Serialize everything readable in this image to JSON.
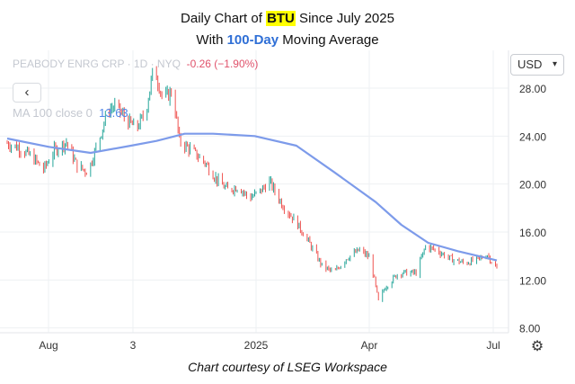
{
  "title": {
    "line1_prefix": "Daily Chart of ",
    "ticker": "BTU",
    "line1_suffix": " Since July 2025",
    "line2_prefix": "With ",
    "ma_label": "100-Day",
    "line2_suffix": " Moving Average"
  },
  "legend": {
    "symbol": "PEABODY ENRG CRP · 1D · NYQ",
    "change": "-0.26 (−1.90%)",
    "ma_label": "MA 100 close 0",
    "ma_value": "13.63"
  },
  "currency": "USD",
  "back_icon": "chevron-left-icon",
  "settings_icon": "gear-icon",
  "footer": "Chart courtesy of LSEG Workspace",
  "colors": {
    "up": "#26a69a",
    "down": "#ef5350",
    "ma": "#7d9bea",
    "grid": "#eef0f3"
  },
  "chart_data": {
    "type": "line",
    "title": "Daily Chart of BTU Since July 2025 With 100-Day Moving Average",
    "xlabel": "",
    "ylabel": "",
    "ylim": [
      7.6,
      31
    ],
    "yticks": [
      "8.00",
      "12.00",
      "16.00",
      "20.00",
      "24.00",
      "28.00"
    ],
    "xticks": [
      "Aug",
      "3",
      "2025",
      "Apr",
      "Jul"
    ],
    "grid": true,
    "legend": "top-left",
    "series": [
      {
        "name": "Price (daily bars)",
        "style": "ohlc",
        "anchors": [
          [
            "Jul 1",
            23.4
          ],
          [
            "Jul 10",
            23.0
          ],
          [
            "Jul 20",
            22.2
          ],
          [
            "Jul 28",
            21.2
          ],
          [
            "Aug 5",
            22.8
          ],
          [
            "Aug 14",
            23.5
          ],
          [
            "Aug 22",
            21.5
          ],
          [
            "Aug 30",
            21.0
          ],
          [
            "Sep 8",
            24.0
          ],
          [
            "Sep 14",
            26.2
          ],
          [
            "Sep 20",
            26.5
          ],
          [
            "Sep 28",
            25.3
          ],
          [
            "Oct 5",
            24.6
          ],
          [
            "Oct 12",
            26.0
          ],
          [
            "Oct 18",
            29.8
          ],
          [
            "Oct 25",
            27.0
          ],
          [
            "Nov 1",
            27.8
          ],
          [
            "Nov 6",
            23.6
          ],
          [
            "Nov 15",
            22.8
          ],
          [
            "Nov 25",
            21.8
          ],
          [
            "Dec 5",
            20.2
          ],
          [
            "Dec 12",
            19.5
          ],
          [
            "Dec 20",
            19.8
          ],
          [
            "Dec 28",
            18.8
          ],
          [
            "Jan 6",
            19.5
          ],
          [
            "Jan 12",
            20.2
          ],
          [
            "Jan 22",
            18.2
          ],
          [
            "Feb 1",
            16.8
          ],
          [
            "Feb 10",
            15.2
          ],
          [
            "Feb 20",
            13.2
          ],
          [
            "Mar 1",
            12.6
          ],
          [
            "Mar 10",
            13.8
          ],
          [
            "Mar 20",
            14.5
          ],
          [
            "Mar 28",
            13.8
          ],
          [
            "Apr 3",
            10.2
          ],
          [
            "Apr 8",
            11.4
          ],
          [
            "Apr 18",
            12.6
          ],
          [
            "May 1",
            12.6
          ],
          [
            "May 8",
            14.8
          ],
          [
            "May 16",
            14.5
          ],
          [
            "May 26",
            13.8
          ],
          [
            "Jun 6",
            13.4
          ],
          [
            "Jun 16",
            13.7
          ],
          [
            "Jun 23",
            14.1
          ],
          [
            "Jun 30",
            12.9
          ]
        ],
        "last_change": "-0.26",
        "last_change_pct": "-1.90%"
      },
      {
        "name": "MA 100 close",
        "points": [
          [
            "Jul 1",
            23.8
          ],
          [
            "Aug 1",
            23.1
          ],
          [
            "Sep 1",
            22.6
          ],
          [
            "Oct 1",
            23.2
          ],
          [
            "Oct 20",
            23.6
          ],
          [
            "Nov 10",
            24.2
          ],
          [
            "Dec 1",
            24.2
          ],
          [
            "Jan 1",
            24.0
          ],
          [
            "Feb 1",
            23.2
          ],
          [
            "Mar 1",
            21.0
          ],
          [
            "Apr 1",
            18.5
          ],
          [
            "Apr 20",
            16.6
          ],
          [
            "May 10",
            15.1
          ],
          [
            "Jun 1",
            14.4
          ],
          [
            "Jun 30",
            13.63
          ]
        ]
      }
    ]
  }
}
